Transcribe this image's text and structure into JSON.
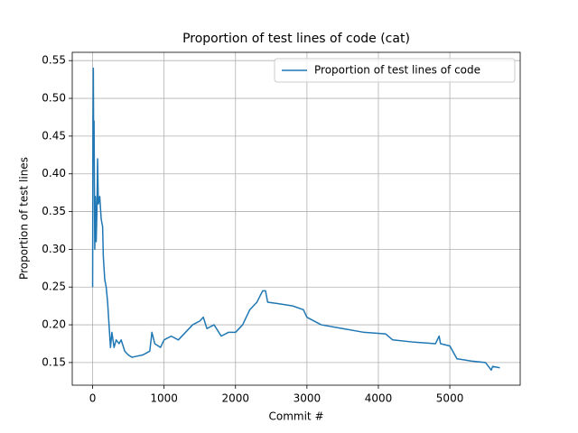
{
  "chart_data": {
    "type": "line",
    "title": "Proportion of test lines of code (cat)",
    "x_label": "Commit #",
    "y_label": "Proportion of test lines",
    "x": [
      0,
      5,
      10,
      15,
      20,
      30,
      40,
      50,
      60,
      70,
      80,
      100,
      120,
      140,
      150,
      170,
      190,
      210,
      230,
      250,
      270,
      300,
      330,
      370,
      400,
      450,
      500,
      550,
      600,
      700,
      800,
      830,
      870,
      950,
      1000,
      1100,
      1200,
      1300,
      1400,
      1500,
      1550,
      1600,
      1700,
      1800,
      1900,
      2000,
      2100,
      2200,
      2300,
      2380,
      2420,
      2450,
      2600,
      2800,
      2950,
      3000,
      3200,
      3500,
      3800,
      4100,
      4200,
      4500,
      4800,
      4850,
      4870,
      5000,
      5100,
      5300,
      5500,
      5580,
      5600,
      5700
    ],
    "series": [
      {
        "name": "Proportion of test lines of code",
        "color": "#1f77b4",
        "values": [
          0.25,
          0.47,
          0.54,
          0.43,
          0.47,
          0.3,
          0.37,
          0.31,
          0.35,
          0.42,
          0.36,
          0.37,
          0.34,
          0.33,
          0.29,
          0.26,
          0.25,
          0.23,
          0.2,
          0.17,
          0.19,
          0.17,
          0.18,
          0.175,
          0.18,
          0.165,
          0.16,
          0.157,
          0.158,
          0.16,
          0.165,
          0.19,
          0.175,
          0.17,
          0.18,
          0.185,
          0.18,
          0.19,
          0.2,
          0.205,
          0.21,
          0.195,
          0.2,
          0.185,
          0.19,
          0.19,
          0.2,
          0.22,
          0.23,
          0.245,
          0.245,
          0.23,
          0.228,
          0.225,
          0.22,
          0.21,
          0.2,
          0.195,
          0.19,
          0.188,
          0.18,
          0.177,
          0.175,
          0.185,
          0.175,
          0.172,
          0.155,
          0.152,
          0.15,
          0.14,
          0.145,
          0.143
        ]
      }
    ],
    "xlim": [
      -285,
      5985
    ],
    "ylim": [
      0.12,
      0.561
    ],
    "xticks": [
      0,
      1000,
      2000,
      3000,
      4000,
      5000
    ],
    "yticks": [
      0.15,
      {
        "value": 0.2,
        "label": "0.20"
      },
      0.25,
      {
        "value": 0.3,
        "label": "0.30"
      },
      0.35,
      {
        "value": 0.4,
        "label": "0.40"
      },
      0.45,
      {
        "value": 0.5,
        "label": "0.50"
      },
      0.55
    ],
    "grid": true,
    "legend": "upper right"
  }
}
